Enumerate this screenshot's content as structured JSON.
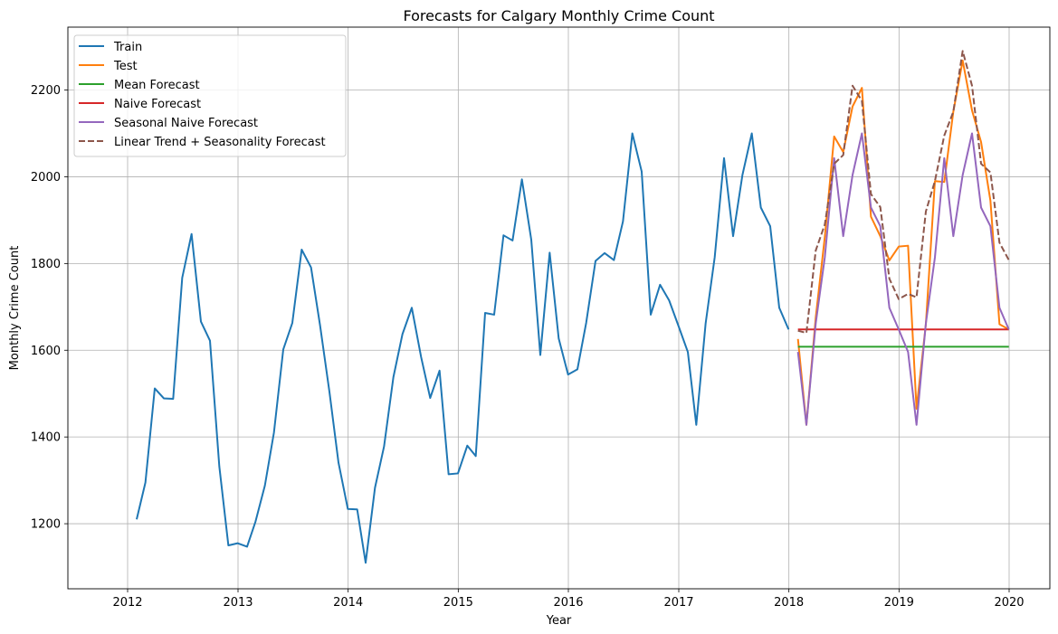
{
  "chart_data": {
    "type": "line",
    "title": "Forecasts for Calgary Monthly Crime Count",
    "xlabel": "Year",
    "ylabel": "Monthly Crime Count",
    "xlim": [
      "2011-06-17",
      "2020-05-15"
    ],
    "ylim": [
      1050,
      2345
    ],
    "x_ticks": [
      "2012",
      "2013",
      "2014",
      "2015",
      "2016",
      "2017",
      "2018",
      "2019",
      "2020"
    ],
    "y_ticks": [
      1200,
      1400,
      1600,
      1800,
      2000,
      2200
    ],
    "grid": true,
    "legend_position": "top-left",
    "series": [
      {
        "name": "Train",
        "color": "#1f77b4",
        "dash": "solid",
        "x": [
          "2012-01-31",
          "2012-02-29",
          "2012-03-31",
          "2012-04-30",
          "2012-05-31",
          "2012-06-30",
          "2012-07-31",
          "2012-08-31",
          "2012-09-30",
          "2012-10-31",
          "2012-11-30",
          "2012-12-31",
          "2013-01-31",
          "2013-02-28",
          "2013-03-31",
          "2013-04-30",
          "2013-05-31",
          "2013-06-30",
          "2013-07-31",
          "2013-08-31",
          "2013-09-30",
          "2013-10-31",
          "2013-11-30",
          "2013-12-31",
          "2014-01-31",
          "2014-02-28",
          "2014-03-31",
          "2014-04-30",
          "2014-05-31",
          "2014-06-30",
          "2014-07-31",
          "2014-08-31",
          "2014-09-30",
          "2014-10-31",
          "2014-11-30",
          "2014-12-31",
          "2015-01-31",
          "2015-02-28",
          "2015-03-31",
          "2015-04-30",
          "2015-05-31",
          "2015-06-30",
          "2015-07-31",
          "2015-08-31",
          "2015-09-30",
          "2015-10-31",
          "2015-11-30",
          "2015-12-31",
          "2016-01-31",
          "2016-02-29",
          "2016-03-31",
          "2016-04-30",
          "2016-05-31",
          "2016-06-30",
          "2016-07-31",
          "2016-08-31",
          "2016-09-30",
          "2016-10-31",
          "2016-11-30",
          "2016-12-31",
          "2017-01-31",
          "2017-02-28",
          "2017-03-31",
          "2017-04-30",
          "2017-05-31",
          "2017-06-30",
          "2017-07-31",
          "2017-08-31",
          "2017-09-30",
          "2017-10-31",
          "2017-11-30",
          "2017-12-31"
        ],
        "values": [
          1210,
          1295,
          1512,
          1489,
          1488,
          1767,
          1868,
          1666,
          1622,
          1332,
          1150,
          1155,
          1147,
          1205,
          1288,
          1410,
          1602,
          1663,
          1832,
          1791,
          1657,
          1504,
          1341,
          1234,
          1233,
          1110,
          1283,
          1378,
          1538,
          1637,
          1698,
          1584,
          1490,
          1553,
          1314,
          1316,
          1380,
          1356,
          1686,
          1682,
          1865,
          1853,
          1994,
          1855,
          1589,
          1825,
          1627,
          1544,
          1556,
          1663,
          1806,
          1824,
          1808,
          1897,
          2100,
          2012,
          1682,
          1751,
          1715,
          1656,
          1596,
          1428,
          1662,
          1814,
          2043,
          1863,
          2004,
          2100,
          1929,
          1886,
          1698,
          1648
        ]
      },
      {
        "name": "Test",
        "color": "#ff7f0e",
        "dash": "solid",
        "x": [
          "2018-01-31",
          "2018-02-28",
          "2018-03-31",
          "2018-04-30",
          "2018-05-31",
          "2018-06-30",
          "2018-07-31",
          "2018-08-31",
          "2018-09-30",
          "2018-10-31",
          "2018-11-30",
          "2018-12-31",
          "2019-01-31",
          "2019-02-28",
          "2019-03-31",
          "2019-04-30",
          "2019-05-31",
          "2019-06-30",
          "2019-07-31",
          "2019-08-31",
          "2019-09-30",
          "2019-10-31",
          "2019-11-30",
          "2019-12-31"
        ],
        "values": [
          1626,
          1428,
          1676,
          1861,
          2093,
          2057,
          2162,
          2205,
          1908,
          1863,
          1807,
          1839,
          1841,
          1465,
          1660,
          1990,
          1988,
          2150,
          2268,
          2153,
          2080,
          1945,
          1660,
          1648
        ]
      },
      {
        "name": "Mean Forecast",
        "color": "#2ca02c",
        "dash": "solid",
        "x": [
          "2018-01-31",
          "2019-12-31"
        ],
        "values": [
          1608,
          1608
        ]
      },
      {
        "name": "Naive Forecast",
        "color": "#d62728",
        "dash": "solid",
        "x": [
          "2018-01-31",
          "2019-12-31"
        ],
        "values": [
          1648,
          1648
        ]
      },
      {
        "name": "Seasonal Naive Forecast",
        "color": "#9467bd",
        "dash": "solid",
        "x": [
          "2018-01-31",
          "2018-02-28",
          "2018-03-31",
          "2018-04-30",
          "2018-05-31",
          "2018-06-30",
          "2018-07-31",
          "2018-08-31",
          "2018-09-30",
          "2018-10-31",
          "2018-11-30",
          "2018-12-31",
          "2019-01-31",
          "2019-02-28",
          "2019-03-31",
          "2019-04-30",
          "2019-05-31",
          "2019-06-30",
          "2019-07-31",
          "2019-08-31",
          "2019-09-30",
          "2019-10-31",
          "2019-11-30",
          "2019-12-31"
        ],
        "values": [
          1596,
          1428,
          1662,
          1814,
          2043,
          1863,
          2004,
          2100,
          1929,
          1886,
          1698,
          1648,
          1596,
          1428,
          1662,
          1814,
          2043,
          1863,
          2004,
          2100,
          1929,
          1886,
          1698,
          1648
        ]
      },
      {
        "name": "Linear Trend + Seasonality Forecast",
        "color": "#8c564b",
        "dash": "dashed",
        "x": [
          "2018-01-31",
          "2018-02-28",
          "2018-03-31",
          "2018-04-30",
          "2018-05-31",
          "2018-06-30",
          "2018-07-31",
          "2018-08-31",
          "2018-09-30",
          "2018-10-31",
          "2018-11-30",
          "2018-12-31",
          "2019-01-31",
          "2019-02-28",
          "2019-03-31",
          "2019-04-30",
          "2019-05-31",
          "2019-06-30",
          "2019-07-31",
          "2019-08-31",
          "2019-09-30",
          "2019-10-31",
          "2019-11-30",
          "2019-12-31"
        ],
        "values": [
          1645,
          1640,
          1830,
          1890,
          2030,
          2050,
          2210,
          2175,
          1960,
          1930,
          1765,
          1718,
          1730,
          1722,
          1920,
          1990,
          2095,
          2150,
          2290,
          2210,
          2030,
          2010,
          1848,
          1808
        ]
      }
    ]
  }
}
